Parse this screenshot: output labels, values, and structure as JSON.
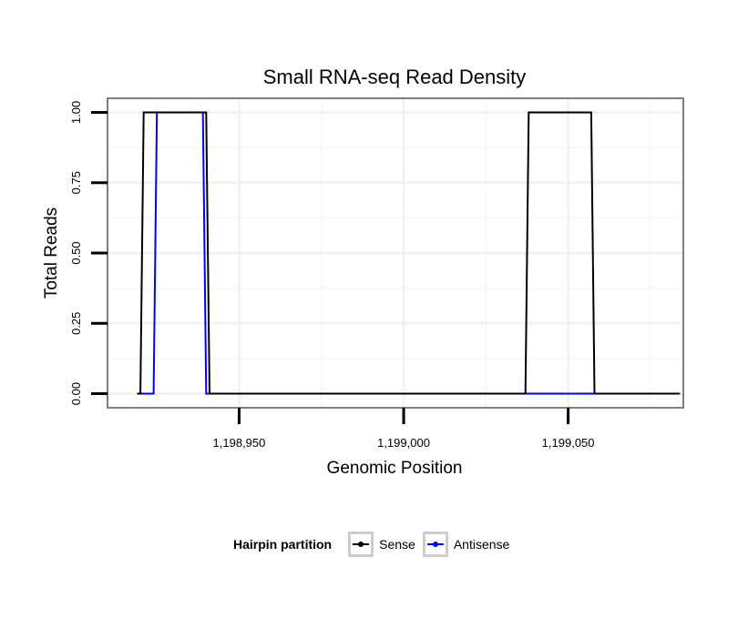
{
  "chart_data": {
    "type": "line",
    "title": "Small RNA-seq Read Density",
    "xlabel": "Genomic Position",
    "ylabel": "Total Reads",
    "xlim": [
      1198910,
      1199085
    ],
    "ylim": [
      -0.05,
      1.05
    ],
    "x_ticks": [
      1198950,
      1199000,
      1199050
    ],
    "x_tick_labels": [
      "1,198,950",
      "1,199,000",
      "1,199,050"
    ],
    "y_ticks": [
      0,
      0.25,
      0.5,
      0.75,
      1.0
    ],
    "y_tick_labels": [
      "0.00",
      "0.25",
      "0.50",
      "0.75",
      "1.00"
    ],
    "grid": true,
    "legend_position": "bottom",
    "legend_title": "Hairpin partition",
    "series": [
      {
        "name": "Sense",
        "color": "#000000",
        "x": [
          1198919,
          1198920,
          1198921,
          1198940,
          1198941,
          1199037,
          1199038,
          1199057,
          1199058,
          1199084
        ],
        "y": [
          0,
          0,
          1,
          1,
          0,
          0,
          1,
          1,
          0,
          0
        ]
      },
      {
        "name": "Antisense",
        "color": "#0000ff",
        "x": [
          1198919,
          1198924,
          1198925,
          1198939,
          1198940,
          1199037,
          1199058
        ],
        "y": [
          0,
          0,
          1,
          1,
          0,
          0,
          0
        ]
      }
    ]
  }
}
